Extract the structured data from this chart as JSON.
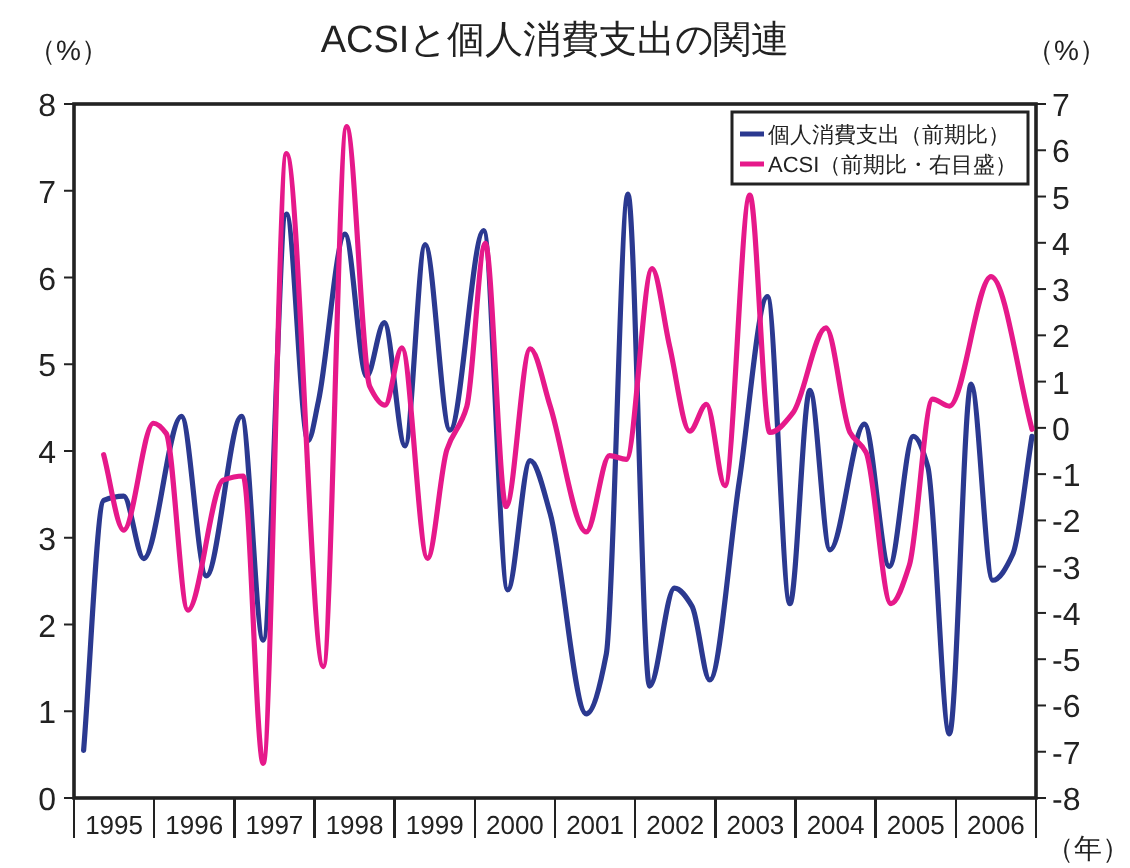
{
  "chart_data": {
    "type": "line",
    "title": "ACSIと個人消費支出の関連",
    "ylabel": "（%）",
    "y2label": "（%）",
    "xlabel": "（年）",
    "xlim": [
      1995,
      2007
    ],
    "xticks": [
      {
        "value": 1995.5,
        "label": "1995"
      },
      {
        "value": 1996.5,
        "label": "1996"
      },
      {
        "value": 1997.5,
        "label": "1997"
      },
      {
        "value": 1998.5,
        "label": "1998"
      },
      {
        "value": 1999.5,
        "label": "1999"
      },
      {
        "value": 2000.5,
        "label": "2000"
      },
      {
        "value": 2001.5,
        "label": "2001"
      },
      {
        "value": 2002.5,
        "label": "2002"
      },
      {
        "value": 2003.5,
        "label": "2003"
      },
      {
        "value": 2004.5,
        "label": "2004"
      },
      {
        "value": 2005.5,
        "label": "2005"
      },
      {
        "value": 2006.5,
        "label": "2006"
      }
    ],
    "ylim": [
      0,
      8
    ],
    "yticks": [
      0,
      1,
      2,
      3,
      4,
      5,
      6,
      7,
      8
    ],
    "y2lim": [
      -8,
      7
    ],
    "y2ticks": [
      -8,
      -7,
      -6,
      -5,
      -4,
      -3,
      -2,
      -1,
      0,
      1,
      2,
      3,
      4,
      5,
      6,
      7
    ],
    "grid": false,
    "legend": "top right",
    "line_style": "solid",
    "series": [
      {
        "name": "個人消費支出（前期比）",
        "color": "#2b3990",
        "x": [
          1995.12,
          1995.37,
          1995.62,
          1995.87,
          1996.34,
          1996.65,
          1997.09,
          1997.36,
          1997.65,
          1997.92,
          1998.05,
          1998.38,
          1998.65,
          1998.87,
          1999.13,
          1999.38,
          1999.69,
          2000.11,
          2000.41,
          2000.69,
          2000.94,
          2001.39,
          2001.64,
          2001.91,
          2002.18,
          2002.49,
          2002.71,
          2002.93,
          2003.3,
          2003.65,
          2003.93,
          2004.18,
          2004.43,
          2004.86,
          2005.17,
          2005.47,
          2005.65,
          2005.92,
          2006.19,
          2006.46,
          2006.71,
          2006.95
        ],
        "values": [
          0.55,
          3.43,
          3.48,
          2.76,
          4.4,
          2.56,
          4.4,
          1.82,
          6.73,
          4.12,
          4.58,
          6.5,
          4.86,
          5.48,
          4.06,
          6.38,
          4.24,
          6.54,
          2.4,
          3.89,
          3.28,
          0.97,
          1.66,
          6.96,
          1.29,
          2.42,
          2.21,
          1.36,
          3.66,
          5.78,
          2.24,
          4.7,
          2.86,
          4.31,
          2.67,
          4.17,
          3.82,
          0.74,
          4.77,
          2.51,
          2.81,
          4.17
        ]
      },
      {
        "name": "ACSI（前期比・右目盛）",
        "color": "#e6198a",
        "axis": "y2",
        "x": [
          1995.37,
          1995.62,
          1995.99,
          1996.15,
          1996.42,
          1996.86,
          1997.11,
          1997.36,
          1997.65,
          1998.11,
          1998.4,
          1998.69,
          1998.88,
          1999.09,
          1999.41,
          1999.65,
          1999.9,
          2000.13,
          2000.39,
          2000.69,
          2000.94,
          2001.39,
          2001.68,
          2001.89,
          2002.21,
          2002.43,
          2002.68,
          2002.89,
          2003.12,
          2003.43,
          2003.68,
          2003.97,
          2004.38,
          2004.68,
          2004.88,
          2005.19,
          2005.42,
          2005.71,
          2005.92,
          2006.44,
          2006.95
        ],
        "values": [
          -0.58,
          -2.21,
          0.1,
          -0.12,
          -3.94,
          -1.13,
          -1.04,
          -7.25,
          5.93,
          -5.16,
          6.51,
          0.89,
          0.49,
          1.73,
          -2.82,
          -0.48,
          0.46,
          3.99,
          -1.7,
          1.71,
          0.47,
          -2.25,
          -0.6,
          -0.68,
          3.44,
          1.76,
          -0.07,
          0.51,
          -1.25,
          5.03,
          -0.1,
          0.33,
          2.16,
          -0.1,
          -0.53,
          -3.8,
          -2.97,
          0.62,
          0.47,
          3.27,
          -0.03
        ]
      }
    ]
  }
}
